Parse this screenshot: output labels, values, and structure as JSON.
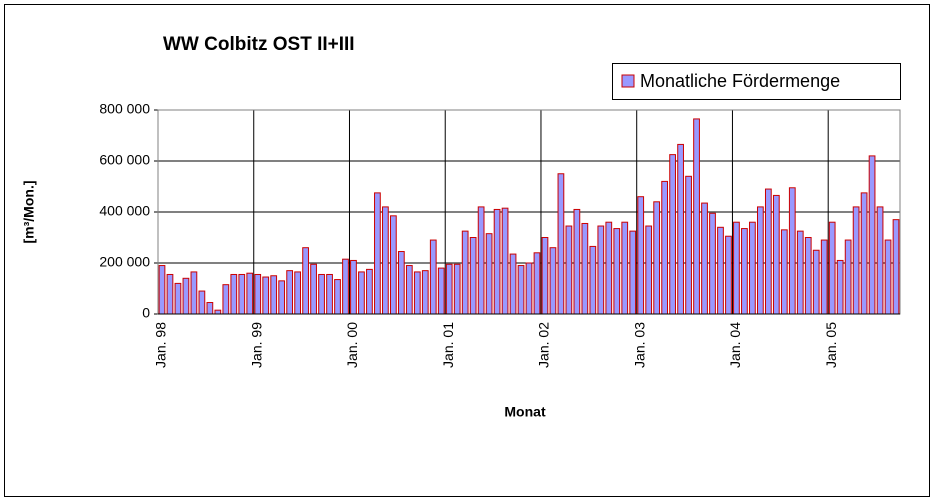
{
  "chart_data": {
    "type": "bar",
    "title": "WW Colbitz OST II+III",
    "x_label": "Monat",
    "y_label": "[m³/Mon.]",
    "categories": [
      "Jan. 98",
      null,
      null,
      null,
      null,
      null,
      null,
      null,
      null,
      null,
      null,
      null,
      "Jan. 99",
      null,
      null,
      null,
      null,
      null,
      null,
      null,
      null,
      null,
      null,
      null,
      "Jan. 00",
      null,
      null,
      null,
      null,
      null,
      null,
      null,
      null,
      null,
      null,
      null,
      "Jan. 01",
      null,
      null,
      null,
      null,
      null,
      null,
      null,
      null,
      null,
      null,
      null,
      "Jan. 02",
      null,
      null,
      null,
      null,
      null,
      null,
      null,
      null,
      null,
      null,
      null,
      "Jan. 03",
      null,
      null,
      null,
      null,
      null,
      null,
      null,
      null,
      null,
      null,
      null,
      "Jan. 04",
      null,
      null,
      null,
      null,
      null,
      null,
      null,
      null,
      null,
      null,
      null,
      "Jan. 05",
      null,
      null,
      null,
      null,
      null,
      null,
      null,
      null
    ],
    "series": [
      {
        "name": "Monatliche Fördermenge",
        "color": "#9999ff",
        "edgecolor": "#cc0000",
        "values": [
          190000,
          155000,
          120000,
          140000,
          165000,
          90000,
          45000,
          15000,
          115000,
          155000,
          155000,
          160000,
          155000,
          145000,
          150000,
          130000,
          170000,
          165000,
          260000,
          195000,
          155000,
          155000,
          135000,
          215000,
          210000,
          165000,
          175000,
          475000,
          420000,
          385000,
          245000,
          190000,
          165000,
          170000,
          290000,
          180000,
          195000,
          195000,
          325000,
          300000,
          420000,
          315000,
          410000,
          415000,
          235000,
          190000,
          200000,
          240000,
          300000,
          260000,
          550000,
          345000,
          410000,
          355000,
          265000,
          345000,
          360000,
          335000,
          360000,
          325000,
          460000,
          345000,
          440000,
          520000,
          625000,
          665000,
          540000,
          765000,
          435000,
          395000,
          340000,
          305000,
          360000,
          335000,
          360000,
          420000,
          490000,
          465000,
          330000,
          495000,
          325000,
          300000,
          250000,
          290000,
          360000,
          210000,
          290000,
          420000,
          475000,
          620000,
          420000,
          290000,
          370000
        ]
      }
    ],
    "ylim": [
      0,
      800000
    ],
    "yticks": [
      0,
      {
        "value": 200000,
        "label": "200 000"
      },
      {
        "value": 400000,
        "label": "400 000"
      },
      {
        "value": 600000,
        "label": "600 000"
      },
      {
        "value": 800000,
        "label": "800 000"
      }
    ],
    "grid": true,
    "legend": "upper right"
  }
}
